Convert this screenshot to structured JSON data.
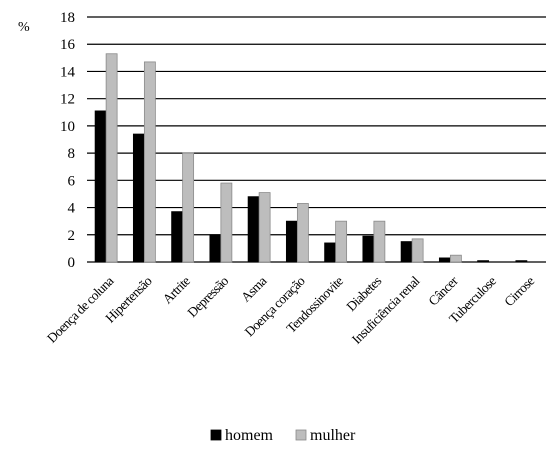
{
  "chart_data": {
    "type": "bar",
    "ylabel": "%",
    "ylim": [
      0,
      18
    ],
    "yticks": [
      0,
      2,
      4,
      6,
      8,
      10,
      12,
      14,
      16,
      18
    ],
    "grid": true,
    "legend_position": "bottom-center",
    "categories": [
      "Doença de coluna",
      "Hipertensão",
      "Artrite",
      "Depressão",
      "Asma",
      "Doença coração",
      "Tendossinovite",
      "Diabetes",
      "Insuficiência renal",
      "Câncer",
      "Tuberculose",
      "Cirrose"
    ],
    "series": [
      {
        "name": "homem",
        "color": "#000000",
        "values": [
          11.1,
          9.4,
          3.7,
          2.0,
          4.8,
          3.0,
          1.4,
          1.9,
          1.5,
          0.3,
          0.1,
          0.1
        ]
      },
      {
        "name": "mulher",
        "color": "#bdbdbd",
        "values": [
          15.3,
          14.7,
          8.0,
          5.8,
          5.1,
          4.3,
          3.0,
          3.0,
          1.7,
          0.5,
          0.0,
          0.0
        ]
      }
    ]
  }
}
